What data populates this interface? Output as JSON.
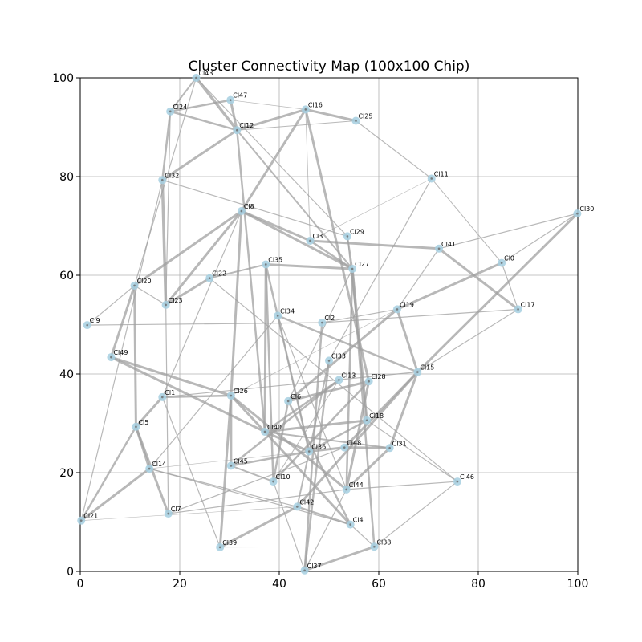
{
  "chart_data": {
    "type": "scatter",
    "title": "Cluster Connectivity Map (100x100 Chip)",
    "xlabel": "",
    "ylabel": "",
    "xlim": [
      0,
      100
    ],
    "ylim": [
      0,
      100
    ],
    "x_ticks": [
      "0",
      "20",
      "40",
      "60",
      "80",
      "100"
    ],
    "y_ticks": [
      "0",
      "20",
      "40",
      "60",
      "80",
      "100"
    ],
    "grid": true,
    "colors": {
      "node": "#a6cfe0",
      "node_edge": "#6b6b6b",
      "edge": "#a0a0a0"
    },
    "nodes": [
      {
        "name": "Cl0",
        "x": 84.7,
        "y": 62.5
      },
      {
        "name": "Cl1",
        "x": 16.5,
        "y": 35.3
      },
      {
        "name": "Cl2",
        "x": 48.6,
        "y": 50.4
      },
      {
        "name": "Cl3",
        "x": 46.2,
        "y": 67.0
      },
      {
        "name": "Cl4",
        "x": 54.3,
        "y": 9.5
      },
      {
        "name": "Cl5",
        "x": 11.2,
        "y": 29.3
      },
      {
        "name": "Cl6",
        "x": 41.8,
        "y": 34.5
      },
      {
        "name": "Cl7",
        "x": 17.7,
        "y": 11.7
      },
      {
        "name": "Cl8",
        "x": 32.4,
        "y": 73.0
      },
      {
        "name": "Cl9",
        "x": 1.4,
        "y": 49.9
      },
      {
        "name": "Cl10",
        "x": 38.8,
        "y": 18.2
      },
      {
        "name": "Cl11",
        "x": 70.6,
        "y": 79.6
      },
      {
        "name": "Cl12",
        "x": 31.5,
        "y": 89.4
      },
      {
        "name": "Cl13",
        "x": 52.0,
        "y": 38.8
      },
      {
        "name": "Cl14",
        "x": 13.9,
        "y": 20.8
      },
      {
        "name": "Cl15",
        "x": 67.8,
        "y": 40.4
      },
      {
        "name": "Cl16",
        "x": 45.3,
        "y": 93.6
      },
      {
        "name": "Cl17",
        "x": 88.0,
        "y": 53.1
      },
      {
        "name": "Cl18",
        "x": 57.6,
        "y": 30.6
      },
      {
        "name": "Cl19",
        "x": 63.7,
        "y": 53.1
      },
      {
        "name": "Cl20",
        "x": 10.9,
        "y": 57.9
      },
      {
        "name": "Cl21",
        "x": 0.2,
        "y": 10.3
      },
      {
        "name": "Cl22",
        "x": 26.0,
        "y": 59.4
      },
      {
        "name": "Cl23",
        "x": 17.2,
        "y": 54.0
      },
      {
        "name": "Cl24",
        "x": 18.1,
        "y": 93.2
      },
      {
        "name": "Cl25",
        "x": 55.4,
        "y": 91.3
      },
      {
        "name": "Cl26",
        "x": 30.3,
        "y": 35.6
      },
      {
        "name": "Cl27",
        "x": 54.7,
        "y": 61.3
      },
      {
        "name": "Cl28",
        "x": 58.0,
        "y": 38.5
      },
      {
        "name": "Cl29",
        "x": 53.7,
        "y": 67.9
      },
      {
        "name": "Cl30",
        "x": 99.9,
        "y": 72.5
      },
      {
        "name": "Cl31",
        "x": 62.2,
        "y": 25.0
      },
      {
        "name": "Cl32",
        "x": 16.5,
        "y": 79.3
      },
      {
        "name": "Cl33",
        "x": 50.0,
        "y": 42.7
      },
      {
        "name": "Cl34",
        "x": 39.7,
        "y": 51.8
      },
      {
        "name": "Cl35",
        "x": 37.3,
        "y": 62.2
      },
      {
        "name": "Cl36",
        "x": 46.0,
        "y": 24.3
      },
      {
        "name": "Cl37",
        "x": 45.1,
        "y": 0.2
      },
      {
        "name": "Cl38",
        "x": 59.1,
        "y": 5.0
      },
      {
        "name": "Cl39",
        "x": 28.1,
        "y": 4.9
      },
      {
        "name": "Cl40",
        "x": 37.1,
        "y": 28.3
      },
      {
        "name": "Cl41",
        "x": 72.1,
        "y": 65.4
      },
      {
        "name": "Cl42",
        "x": 43.6,
        "y": 13.1
      },
      {
        "name": "Cl43",
        "x": 23.3,
        "y": 100.0
      },
      {
        "name": "Cl44",
        "x": 53.5,
        "y": 16.6
      },
      {
        "name": "Cl45",
        "x": 30.3,
        "y": 21.4
      },
      {
        "name": "Cl46",
        "x": 75.8,
        "y": 18.2
      },
      {
        "name": "Cl47",
        "x": 30.2,
        "y": 95.5
      },
      {
        "name": "Cl48",
        "x": 53.1,
        "y": 25.1
      },
      {
        "name": "Cl49",
        "x": 6.2,
        "y": 43.4
      }
    ],
    "edges": [
      {
        "source": "Cl43",
        "target": "Cl12",
        "weight": 3.5
      },
      {
        "source": "Cl43",
        "target": "Cl24",
        "weight": 2
      },
      {
        "source": "Cl43",
        "target": "Cl20",
        "weight": 1.2
      },
      {
        "source": "Cl43",
        "target": "Cl29",
        "weight": 1.2
      },
      {
        "source": "Cl47",
        "target": "Cl12",
        "weight": 3
      },
      {
        "source": "Cl47",
        "target": "Cl24",
        "weight": 2.5
      },
      {
        "source": "Cl47",
        "target": "Cl16",
        "weight": 0.7
      },
      {
        "source": "Cl24",
        "target": "Cl12",
        "weight": 2.5
      },
      {
        "source": "Cl24",
        "target": "Cl23",
        "weight": 1.2
      },
      {
        "source": "Cl24",
        "target": "Cl32",
        "weight": 2.5
      },
      {
        "source": "Cl12",
        "target": "Cl16",
        "weight": 3
      },
      {
        "source": "Cl12",
        "target": "Cl25",
        "weight": 1
      },
      {
        "source": "Cl12",
        "target": "Cl32",
        "weight": 3
      },
      {
        "source": "Cl12",
        "target": "Cl40",
        "weight": 2.5
      },
      {
        "source": "Cl12",
        "target": "Cl27",
        "weight": 2
      },
      {
        "source": "Cl16",
        "target": "Cl25",
        "weight": 3
      },
      {
        "source": "Cl16",
        "target": "Cl8",
        "weight": 3
      },
      {
        "source": "Cl16",
        "target": "Cl28",
        "weight": 3
      },
      {
        "source": "Cl16",
        "target": "Cl3",
        "weight": 0.8
      },
      {
        "source": "Cl25",
        "target": "Cl11",
        "weight": 1.2
      },
      {
        "source": "Cl32",
        "target": "Cl23",
        "weight": 3.5
      },
      {
        "source": "Cl32",
        "target": "Cl29",
        "weight": 1.2
      },
      {
        "source": "Cl11",
        "target": "Cl3",
        "weight": 0.6
      },
      {
        "source": "Cl11",
        "target": "Cl33",
        "weight": 1.2
      },
      {
        "source": "Cl11",
        "target": "Cl0",
        "weight": 1
      },
      {
        "source": "Cl30",
        "target": "Cl15",
        "weight": 3
      },
      {
        "source": "Cl30",
        "target": "Cl41",
        "weight": 1.2
      },
      {
        "source": "Cl8",
        "target": "Cl3",
        "weight": 3
      },
      {
        "source": "Cl8",
        "target": "Cl27",
        "weight": 3
      },
      {
        "source": "Cl8",
        "target": "Cl20",
        "weight": 3
      },
      {
        "source": "Cl8",
        "target": "Cl23",
        "weight": 3
      },
      {
        "source": "Cl8",
        "target": "Cl26",
        "weight": 3
      },
      {
        "source": "Cl8",
        "target": "Cl1",
        "weight": 1.2
      },
      {
        "source": "Cl29",
        "target": "Cl27",
        "weight": 2
      },
      {
        "source": "Cl29",
        "target": "Cl18",
        "weight": 1.2
      },
      {
        "source": "Cl3",
        "target": "Cl41",
        "weight": 3
      },
      {
        "source": "Cl3",
        "target": "Cl27",
        "weight": 2.5
      },
      {
        "source": "Cl41",
        "target": "Cl17",
        "weight": 3
      },
      {
        "source": "Cl41",
        "target": "Cl19",
        "weight": 1.2
      },
      {
        "source": "Cl0",
        "target": "Cl19",
        "weight": 3
      },
      {
        "source": "Cl0",
        "target": "Cl30",
        "weight": 1.2
      },
      {
        "source": "Cl0",
        "target": "Cl17",
        "weight": 1.2
      },
      {
        "source": "Cl35",
        "target": "Cl27",
        "weight": 3
      },
      {
        "source": "Cl35",
        "target": "Cl22",
        "weight": 2
      },
      {
        "source": "Cl35",
        "target": "Cl10",
        "weight": 2.5
      },
      {
        "source": "Cl35",
        "target": "Cl36",
        "weight": 2.5
      },
      {
        "source": "Cl35",
        "target": "Cl40",
        "weight": 3
      },
      {
        "source": "Cl27",
        "target": "Cl18",
        "weight": 3
      },
      {
        "source": "Cl27",
        "target": "Cl38",
        "weight": 2.5
      },
      {
        "source": "Cl27",
        "target": "Cl44",
        "weight": 2.5
      },
      {
        "source": "Cl27",
        "target": "Cl6",
        "weight": 1.2
      },
      {
        "source": "Cl22",
        "target": "Cl23",
        "weight": 3
      },
      {
        "source": "Cl22",
        "target": "Cl46",
        "weight": 1.2
      },
      {
        "source": "Cl20",
        "target": "Cl9",
        "weight": 1.2
      },
      {
        "source": "Cl20",
        "target": "Cl49",
        "weight": 3
      },
      {
        "source": "Cl20",
        "target": "Cl5",
        "weight": 3
      },
      {
        "source": "Cl20",
        "target": "Cl23",
        "weight": 1.2
      },
      {
        "source": "Cl23",
        "target": "Cl7",
        "weight": 1.2
      },
      {
        "source": "Cl9",
        "target": "Cl2",
        "weight": 1.2
      },
      {
        "source": "Cl34",
        "target": "Cl15",
        "weight": 2.5
      },
      {
        "source": "Cl34",
        "target": "Cl36",
        "weight": 1.2
      },
      {
        "source": "Cl34",
        "target": "Cl44",
        "weight": 1.2
      },
      {
        "source": "Cl34",
        "target": "Cl14",
        "weight": 1.2
      },
      {
        "source": "Cl2",
        "target": "Cl19",
        "weight": 1.2
      },
      {
        "source": "Cl2",
        "target": "Cl37",
        "weight": 2.5
      },
      {
        "source": "Cl2",
        "target": "Cl17",
        "weight": 1.2
      },
      {
        "source": "Cl19",
        "target": "Cl15",
        "weight": 3
      },
      {
        "source": "Cl19",
        "target": "Cl6",
        "weight": 3
      },
      {
        "source": "Cl19",
        "target": "Cl26",
        "weight": 0.6
      },
      {
        "source": "Cl17",
        "target": "Cl15",
        "weight": 1.2
      },
      {
        "source": "Cl33",
        "target": "Cl37",
        "weight": 2.5
      },
      {
        "source": "Cl33",
        "target": "Cl42",
        "weight": 2
      },
      {
        "source": "Cl49",
        "target": "Cl26",
        "weight": 3
      },
      {
        "source": "Cl49",
        "target": "Cl40",
        "weight": 3
      },
      {
        "source": "Cl13",
        "target": "Cl45",
        "weight": 2.5
      },
      {
        "source": "Cl13",
        "target": "Cl40",
        "weight": 2.5
      },
      {
        "source": "Cl13",
        "target": "Cl10",
        "weight": 1
      },
      {
        "source": "Cl28",
        "target": "Cl10",
        "weight": 2.5
      },
      {
        "source": "Cl28",
        "target": "Cl44",
        "weight": 3
      },
      {
        "source": "Cl15",
        "target": "Cl48",
        "weight": 3
      },
      {
        "source": "Cl15",
        "target": "Cl31",
        "weight": 3
      },
      {
        "source": "Cl15",
        "target": "Cl42",
        "weight": 3
      },
      {
        "source": "Cl15",
        "target": "Cl1",
        "weight": 1.2
      },
      {
        "source": "Cl1",
        "target": "Cl26",
        "weight": 2.5
      },
      {
        "source": "Cl1",
        "target": "Cl39",
        "weight": 1.2
      },
      {
        "source": "Cl1",
        "target": "Cl5",
        "weight": 3
      },
      {
        "source": "Cl26",
        "target": "Cl45",
        "weight": 3
      },
      {
        "source": "Cl26",
        "target": "Cl40",
        "weight": 3
      },
      {
        "source": "Cl26",
        "target": "Cl39",
        "weight": 3
      },
      {
        "source": "Cl26",
        "target": "Cl44",
        "weight": 3
      },
      {
        "source": "Cl6",
        "target": "Cl28",
        "weight": 3
      },
      {
        "source": "Cl6",
        "target": "Cl10",
        "weight": 2.5
      },
      {
        "source": "Cl6",
        "target": "Cl4",
        "weight": 2.5
      },
      {
        "source": "Cl5",
        "target": "Cl14",
        "weight": 3
      },
      {
        "source": "Cl5",
        "target": "Cl7",
        "weight": 3
      },
      {
        "source": "Cl5",
        "target": "Cl21",
        "weight": 2.5
      },
      {
        "source": "Cl18",
        "target": "Cl40",
        "weight": 3
      },
      {
        "source": "Cl18",
        "target": "Cl46",
        "weight": 1.2
      },
      {
        "source": "Cl18",
        "target": "Cl36",
        "weight": 2.5
      },
      {
        "source": "Cl40",
        "target": "Cl36",
        "weight": 3
      },
      {
        "source": "Cl40",
        "target": "Cl4",
        "weight": 3
      },
      {
        "source": "Cl40",
        "target": "Cl31",
        "weight": 2
      },
      {
        "source": "Cl36",
        "target": "Cl48",
        "weight": 3
      },
      {
        "source": "Cl36",
        "target": "Cl45",
        "weight": 2.5
      },
      {
        "source": "Cl36",
        "target": "Cl14",
        "weight": 0.6
      },
      {
        "source": "Cl48",
        "target": "Cl31",
        "weight": 3
      },
      {
        "source": "Cl31",
        "target": "Cl44",
        "weight": 3
      },
      {
        "source": "Cl14",
        "target": "Cl21",
        "weight": 3
      },
      {
        "source": "Cl14",
        "target": "Cl42",
        "weight": 1.2
      },
      {
        "source": "Cl14",
        "target": "Cl4",
        "weight": 1.2
      },
      {
        "source": "Cl45",
        "target": "Cl10",
        "weight": 2
      },
      {
        "source": "Cl10",
        "target": "Cl37",
        "weight": 1.2
      },
      {
        "source": "Cl44",
        "target": "Cl46",
        "weight": 1.2
      },
      {
        "source": "Cl44",
        "target": "Cl37",
        "weight": 1.2
      },
      {
        "source": "Cl7",
        "target": "Cl44",
        "weight": 1.2
      },
      {
        "source": "Cl7",
        "target": "Cl48",
        "weight": 1.2
      },
      {
        "source": "Cl42",
        "target": "Cl39",
        "weight": 3
      },
      {
        "source": "Cl42",
        "target": "Cl4",
        "weight": 2.5
      },
      {
        "source": "Cl42",
        "target": "Cl21",
        "weight": 0.6
      },
      {
        "source": "Cl37",
        "target": "Cl38",
        "weight": 3
      },
      {
        "source": "Cl39",
        "target": "Cl38",
        "weight": 0.6
      },
      {
        "source": "Cl46",
        "target": "Cl38",
        "weight": 1.2
      },
      {
        "source": "Cl4",
        "target": "Cl38",
        "weight": 1.2
      },
      {
        "source": "Cl21",
        "target": "Cl32",
        "weight": 1.2
      }
    ]
  }
}
